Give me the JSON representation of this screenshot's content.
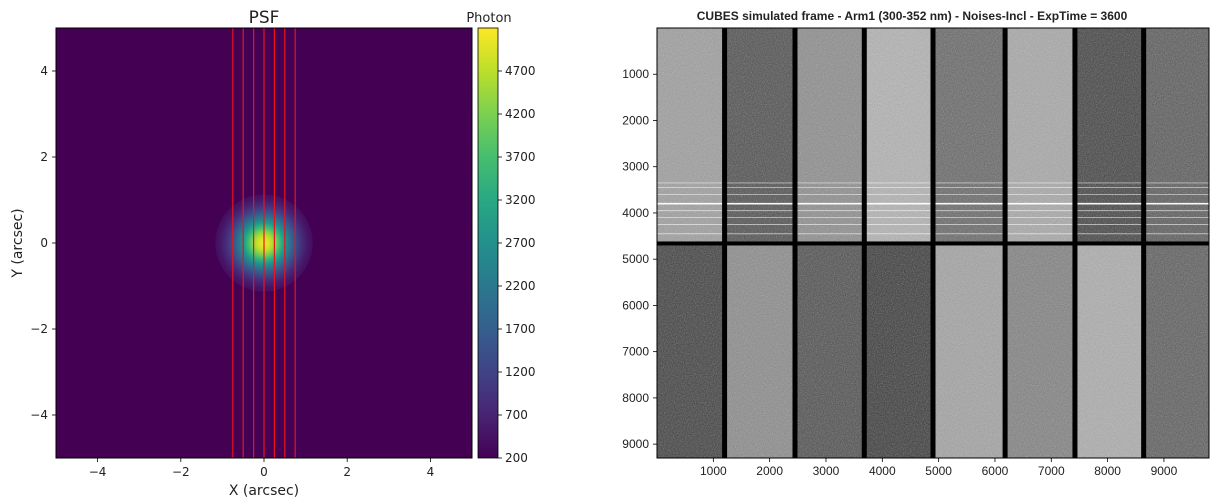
{
  "chart_data": [
    {
      "type": "heatmap",
      "title": "PSF",
      "xlabel": "X (arcsec)",
      "ylabel": "Y (arcsec)",
      "xlim": [
        -5,
        5
      ],
      "ylim": [
        -5,
        5
      ],
      "x_ticks": [
        -4,
        -2,
        0,
        2,
        4
      ],
      "y_ticks": [
        -4,
        -2,
        0,
        2,
        4
      ],
      "x_tick_labels": [
        "−4",
        "−2",
        "0",
        "2",
        "4"
      ],
      "y_tick_labels": [
        "−4",
        "−2",
        "0",
        "2",
        "4"
      ],
      "psf": {
        "center": [
          0,
          0
        ],
        "peak": 5100,
        "background": 200,
        "sigma": 0.45
      },
      "slit_lines_x": [
        -0.75,
        -0.5,
        -0.25,
        0,
        0.25,
        0.5,
        0.75
      ],
      "slit_line_color": "#e8141e",
      "colormap": "viridis",
      "colorbar": {
        "label": "Photon",
        "min": 200,
        "max": 5200,
        "ticks": [
          200,
          700,
          1200,
          1700,
          2200,
          2700,
          3200,
          3700,
          4200,
          4700
        ],
        "tick_labels": [
          "200",
          "700",
          "1200",
          "1700",
          "2200",
          "2700",
          "3200",
          "3700",
          "4200",
          "4700"
        ]
      },
      "grid": false
    },
    {
      "type": "heatmap",
      "title": "CUBES simulated frame - Arm1 (300-352 nm) - Noises-Incl - ExpTime = 3600",
      "colormap": "gray",
      "xlim": [
        0,
        9800
      ],
      "ylim": [
        9300,
        0
      ],
      "x_ticks": [
        1000,
        2000,
        3000,
        4000,
        5000,
        6000,
        7000,
        8000,
        9000
      ],
      "x_tick_labels": [
        "1000",
        "2000",
        "3000",
        "4000",
        "5000",
        "6000",
        "7000",
        "8000",
        "9000"
      ],
      "y_ticks": [
        1000,
        2000,
        3000,
        4000,
        5000,
        6000,
        7000,
        8000,
        9000
      ],
      "y_tick_labels": [
        "1000",
        "2000",
        "3000",
        "4000",
        "5000",
        "6000",
        "7000",
        "8000",
        "9000"
      ],
      "column_boundaries": [
        0,
        1200,
        2450,
        3680,
        4900,
        6180,
        7420,
        8640,
        9800
      ],
      "horizontal_gap_y": 4660,
      "gap_color": "#000000",
      "top_row_intensity": [
        0.62,
        0.3,
        0.55,
        0.7,
        0.4,
        0.66,
        0.25,
        0.35
      ],
      "bottom_row_intensity": [
        0.24,
        0.54,
        0.3,
        0.22,
        0.64,
        0.5,
        0.68,
        0.36
      ],
      "spectral_lines_y": [
        3350,
        3450,
        3600,
        3800,
        3950,
        4100,
        4250,
        4450
      ],
      "grid": false
    }
  ]
}
